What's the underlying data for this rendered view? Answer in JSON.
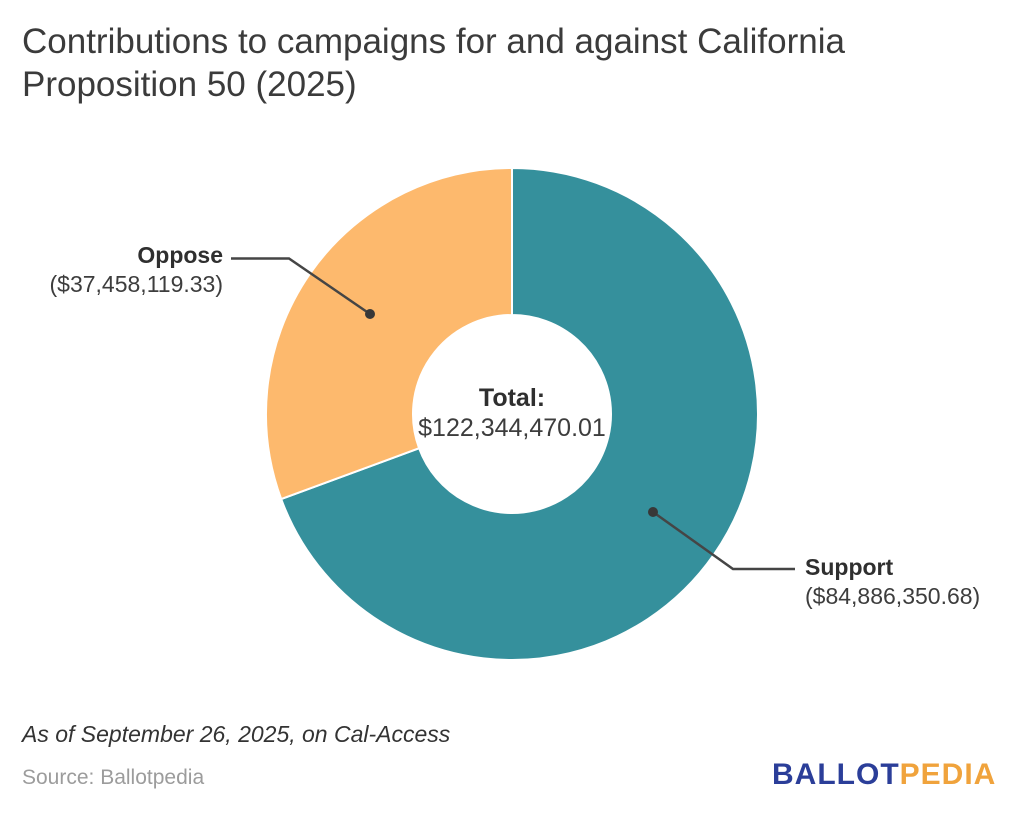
{
  "page": {
    "footnote": "As of September 26, 2025, on Cal-Access",
    "source": "Source: Ballotpedia",
    "logo": {
      "text_primary": "BALLOT",
      "text_secondary": "PEDIA",
      "color_primary": "#2b3e99",
      "color_secondary": "#f0a33c"
    }
  },
  "chart_data": {
    "type": "pie",
    "subtype": "donut",
    "title": "Contributions to campaigns for and against California Proposition 50 (2025)",
    "start_angle_deg": 0,
    "direction": "clockwise",
    "total_value": 122344470.01,
    "center_label": "Total:",
    "center_value_display": "$122,344,470.01",
    "slices": [
      {
        "label": "Support",
        "value": 84886350.68,
        "display": "($84,886,350.68)",
        "percent": 69.38,
        "color": "#35909c"
      },
      {
        "label": "Oppose",
        "value": 37458119.33,
        "display": "($37,458,119.33)",
        "percent": 30.62,
        "color": "#fdb96d"
      }
    ],
    "legend_position": "callout-labels",
    "grid": false
  }
}
